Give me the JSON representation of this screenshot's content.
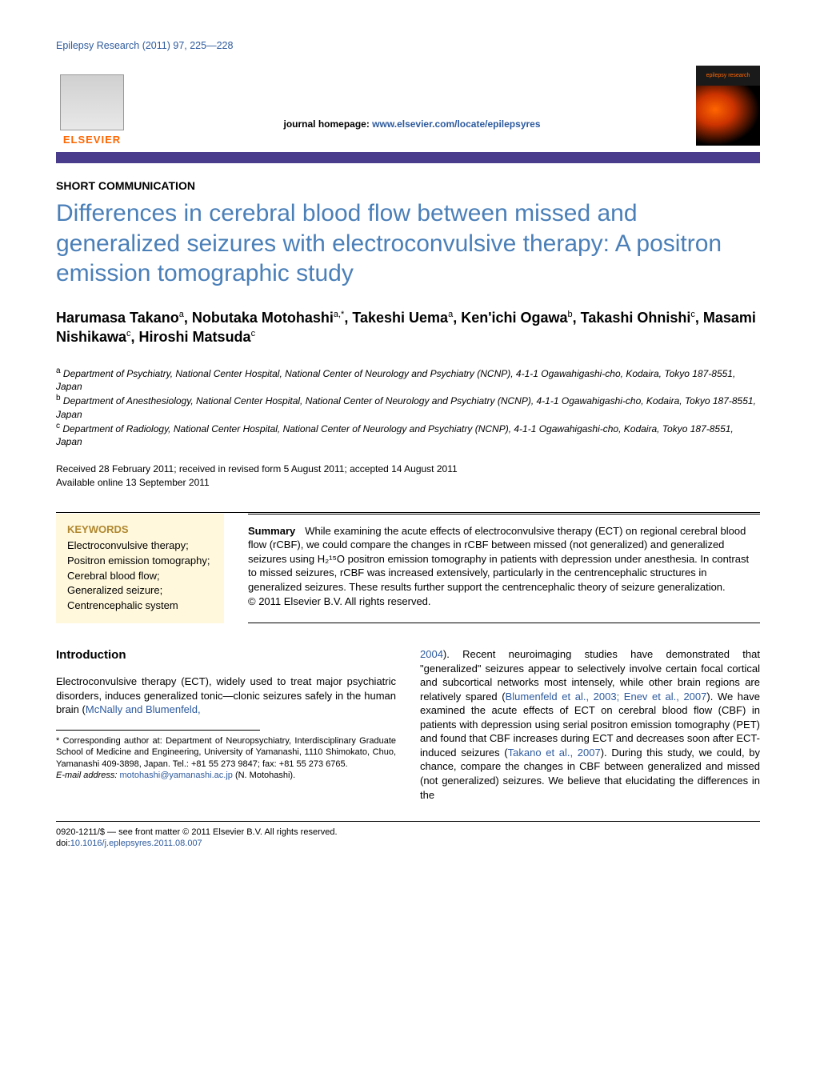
{
  "header": {
    "journal_ref": "Epilepsy Research (2011) 97, 225—228",
    "publisher": "ELSEVIER",
    "homepage_label": "journal homepage: ",
    "homepage_url": "www.elsevier.com/locate/epilepsyres",
    "cover_label": "epilepsy research"
  },
  "article": {
    "type": "SHORT COMMUNICATION",
    "title": "Differences in cerebral blood flow between missed and generalized seizures with electroconvulsive therapy: A positron emission tomographic study",
    "authors_html": "Harumasa Takano<sup>a</sup>, Nobutaka Motohashi<sup>a,*</sup>, Takeshi Uema<sup>a</sup>, Ken'ichi Ogawa<sup>b</sup>, Takashi Ohnishi<sup>c</sup>, Masami Nishikawa<sup>c</sup>, Hiroshi Matsuda<sup>c</sup>",
    "affiliations": [
      {
        "key": "a",
        "text": "Department of Psychiatry, National Center Hospital, National Center of Neurology and Psychiatry (NCNP), 4-1-1 Ogawahigashi-cho, Kodaira, Tokyo 187-8551, Japan"
      },
      {
        "key": "b",
        "text": "Department of Anesthesiology, National Center Hospital, National Center of Neurology and Psychiatry (NCNP), 4-1-1 Ogawahigashi-cho, Kodaira, Tokyo 187-8551, Japan"
      },
      {
        "key": "c",
        "text": "Department of Radiology, National Center Hospital, National Center of Neurology and Psychiatry (NCNP), 4-1-1 Ogawahigashi-cho, Kodaira, Tokyo 187-8551, Japan"
      }
    ],
    "dates_line1": "Received 28 February 2011; received in revised form 5 August 2011; accepted 14 August 2011",
    "dates_line2": "Available online 13 September 2011"
  },
  "keywords": {
    "heading": "KEYWORDS",
    "items": "Electroconvulsive therapy;\nPositron emission tomography;\nCerebral blood flow;\nGeneralized seizure;\nCentrencephalic system"
  },
  "summary": {
    "label": "Summary",
    "text": "While examining the acute effects of electroconvulsive therapy (ECT) on regional cerebral blood flow (rCBF), we could compare the changes in rCBF between missed (not generalized) and generalized seizures using H₂¹⁵O positron emission tomography in patients with depression under anesthesia. In contrast to missed seizures, rCBF was increased extensively, particularly in the centrencephalic structures in generalized seizures. These results further support the centrencephalic theory of seizure generalization.",
    "copyright": "© 2011 Elsevier B.V. All rights reserved."
  },
  "body": {
    "intro_heading": "Introduction",
    "left_para": "Electroconvulsive therapy (ECT), widely used to treat major psychiatric disorders, induces generalized tonic—clonic seizures safely in the human brain (",
    "left_ref": "McNally and Blumenfeld,",
    "right_ref1": "2004",
    "right_para1": "). Recent neuroimaging studies have demonstrated that \"generalized\" seizures appear to selectively involve certain focal cortical and subcortical networks most intensely, while other brain regions are relatively spared (",
    "right_ref2": "Blumenfeld et al., 2003; Enev et al., 2007",
    "right_para2": "). We have examined the acute effects of ECT on cerebral blood flow (CBF) in patients with depression using serial positron emission tomography (PET) and found that CBF increases during ECT and decreases soon after ECT-induced seizures (",
    "right_ref3": "Takano et al., 2007",
    "right_para3": "). During this study, we could, by chance, compare the changes in CBF between generalized and missed (not generalized) seizures. We believe that elucidating the differences in the"
  },
  "footnote": {
    "corresponding": "* Corresponding author at: Department of Neuropsychiatry, Interdisciplinary Graduate School of Medicine and Engineering, University of Yamanashi, 1110 Shimokato, Chuo, Yamanashi 409-3898, Japan. Tel.: +81 55 273 9847; fax: +81 55 273 6765.",
    "email_label": "E-mail address:",
    "email": "motohashi@yamanashi.ac.jp",
    "email_attr": " (N. Motohashi)."
  },
  "bottom": {
    "issn": "0920-1211/$ — see front matter © 2011 Elsevier B.V. All rights reserved.",
    "doi_label": "doi:",
    "doi": "10.1016/j.eplepsyres.2011.08.007"
  },
  "colors": {
    "link": "#2d5a9e",
    "title": "#4a7fb8",
    "purple_bar": "#4a3c8c",
    "keywords_bg": "#fff8dc",
    "keywords_heading": "#b08830",
    "elsevier_orange": "#ff6600"
  }
}
